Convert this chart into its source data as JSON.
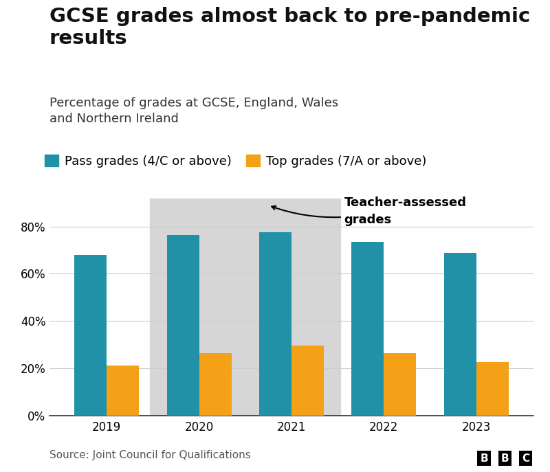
{
  "title": "GCSE grades almost back to pre-pandemic\nresults",
  "subtitle": "Percentage of grades at GCSE, England, Wales\nand Northern Ireland",
  "source": "Source: Joint Council for Qualifications",
  "years": [
    2019,
    2020,
    2021,
    2022,
    2023
  ],
  "pass_grades": [
    68,
    76.5,
    77.5,
    73.5,
    69
  ],
  "top_grades": [
    21,
    26.5,
    29.5,
    26.5,
    22.5
  ],
  "pass_color": "#2191a8",
  "top_color": "#f4a118",
  "legend_pass": "Pass grades (4/C or above)",
  "legend_top": "Top grades (7/A or above)",
  "annotation_text": "Teacher-assessed\ngrades",
  "shaded_color": "#d6d6d6",
  "background_color": "#ffffff",
  "ylim": [
    0,
    100
  ],
  "yticks": [
    0,
    20,
    40,
    60,
    80
  ],
  "bar_width": 0.35,
  "title_fontsize": 21,
  "subtitle_fontsize": 13,
  "tick_fontsize": 12,
  "legend_fontsize": 13,
  "source_fontsize": 11
}
